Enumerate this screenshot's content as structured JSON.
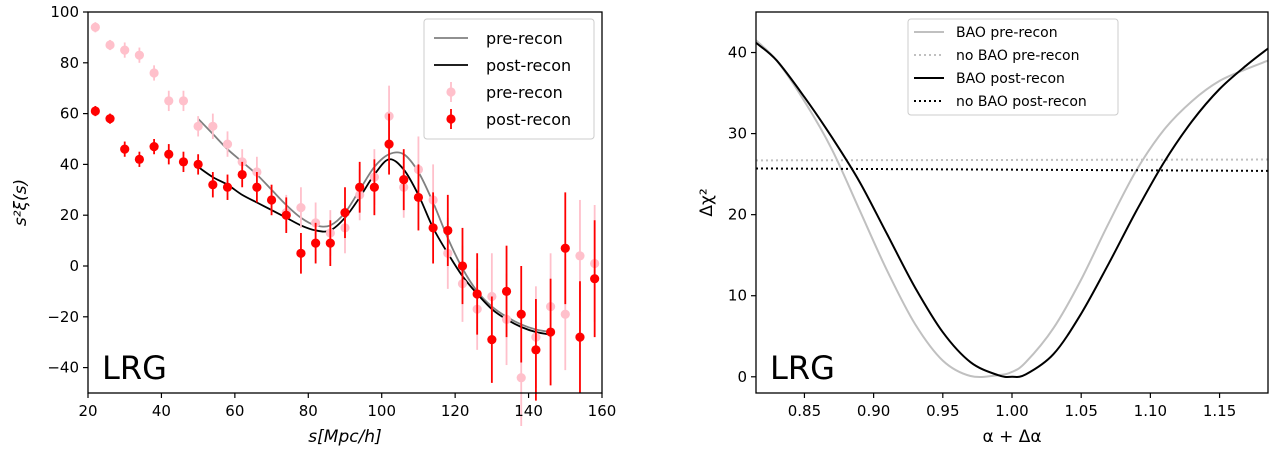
{
  "chart_data": [
    {
      "type": "scatter",
      "panel_tag": "LRG",
      "xlabel": "s[Mpc/h]",
      "ylabel": "s²ξ(s)",
      "xlim": [
        20,
        160
      ],
      "ylim": [
        -50,
        100
      ],
      "xticks": [
        20,
        40,
        60,
        80,
        100,
        120,
        140,
        160
      ],
      "yticks": [
        -40,
        -20,
        0,
        20,
        40,
        60,
        80,
        100
      ],
      "legend_position": "top-right",
      "legend": [
        "pre-recon",
        "post-recon",
        "pre-recon",
        "post-recon"
      ],
      "series": [
        {
          "name": "pre-recon",
          "kind": "line",
          "color": "#808080",
          "x": [
            50,
            54,
            58,
            62,
            66,
            70,
            74,
            78,
            82,
            86,
            90,
            94,
            98,
            102,
            106,
            110,
            114,
            118,
            122,
            126,
            130,
            134,
            138,
            142,
            146
          ],
          "y": [
            58,
            52,
            46,
            41,
            36,
            30,
            24,
            19,
            16,
            16,
            21,
            30,
            39,
            44,
            44,
            37,
            25,
            11,
            -1,
            -10,
            -16,
            -20,
            -23,
            -25,
            -26
          ]
        },
        {
          "name": "post-recon",
          "kind": "line",
          "color": "#000000",
          "x": [
            50,
            54,
            58,
            62,
            66,
            70,
            74,
            78,
            82,
            86,
            90,
            94,
            98,
            102,
            106,
            110,
            114,
            118,
            122,
            126,
            130,
            134,
            138,
            142,
            146
          ],
          "y": [
            39,
            35,
            32,
            28,
            25,
            22,
            19,
            16,
            14,
            14,
            19,
            27,
            36,
            42,
            38,
            28,
            15,
            5,
            -4,
            -11,
            -17,
            -21,
            -24,
            -26,
            -27
          ]
        },
        {
          "name": "pre-recon",
          "kind": "errorbar",
          "color": "#ffc0cb",
          "x": [
            22,
            26,
            30,
            34,
            38,
            42,
            46,
            50,
            54,
            58,
            62,
            66,
            70,
            74,
            78,
            82,
            86,
            90,
            94,
            98,
            102,
            106,
            110,
            114,
            118,
            122,
            126,
            130,
            134,
            138,
            142,
            146,
            150,
            154,
            158
          ],
          "y": [
            94,
            87,
            85,
            83,
            76,
            65,
            65,
            55,
            55,
            48,
            41,
            37,
            26,
            21,
            23,
            17,
            13,
            15,
            28,
            35,
            59,
            31,
            38,
            26,
            5,
            -7,
            -17,
            -12,
            -21,
            -44,
            -28,
            -16,
            -19,
            4,
            1
          ],
          "err": [
            2,
            2,
            3,
            3,
            3,
            4,
            4,
            4,
            5,
            5,
            5,
            6,
            6,
            7,
            8,
            8,
            9,
            10,
            10,
            11,
            12,
            12,
            13,
            14,
            14,
            15,
            16,
            17,
            18,
            19,
            20,
            21,
            22,
            22,
            23
          ]
        },
        {
          "name": "post-recon",
          "kind": "errorbar",
          "color": "#ff0000",
          "x": [
            22,
            26,
            30,
            34,
            38,
            42,
            46,
            50,
            54,
            58,
            62,
            66,
            70,
            74,
            78,
            82,
            86,
            90,
            94,
            98,
            102,
            106,
            110,
            114,
            118,
            122,
            126,
            130,
            134,
            138,
            142,
            146,
            150,
            154,
            158
          ],
          "y": [
            61,
            58,
            46,
            42,
            47,
            44,
            41,
            40,
            32,
            31,
            36,
            31,
            26,
            20,
            5,
            9,
            9,
            21,
            31,
            31,
            48,
            34,
            27,
            15,
            14,
            0,
            -11,
            -29,
            -10,
            -19,
            -33,
            -26,
            7,
            -28,
            -5
          ],
          "err": [
            2,
            2,
            3,
            3,
            3,
            4,
            4,
            4,
            5,
            5,
            5,
            6,
            6,
            7,
            8,
            8,
            9,
            10,
            10,
            11,
            12,
            12,
            13,
            14,
            14,
            15,
            16,
            17,
            18,
            19,
            20,
            21,
            22,
            22,
            23
          ]
        }
      ]
    },
    {
      "type": "line",
      "panel_tag": "LRG",
      "xlabel": "α + Δα",
      "ylabel": "Δχ²",
      "xlim": [
        0.815,
        1.185
      ],
      "ylim": [
        -2,
        45
      ],
      "xticks": [
        "0.85",
        "0.90",
        "0.95",
        "1.00",
        "1.05",
        "1.10",
        "1.15"
      ],
      "yticks": [
        0,
        10,
        20,
        30,
        40
      ],
      "legend_position": "top-center",
      "legend": [
        "BAO pre-recon",
        "no BAO pre-recon",
        "BAO post-recon",
        "no BAO post-recon"
      ],
      "series": [
        {
          "name": "BAO pre-recon",
          "style": "solid",
          "color": "#c0c0c0",
          "x": [
            0.815,
            0.83,
            0.85,
            0.87,
            0.89,
            0.91,
            0.93,
            0.95,
            0.97,
            0.99,
            1.0,
            1.01,
            1.03,
            1.05,
            1.07,
            1.09,
            1.11,
            1.13,
            1.15,
            1.17,
            1.185
          ],
          "y": [
            41.5,
            39,
            34,
            28,
            20.5,
            13,
            6.5,
            2,
            0.1,
            0.2,
            0.6,
            1.8,
            6,
            12,
            19,
            25.5,
            30.5,
            34,
            36.5,
            38,
            39
          ]
        },
        {
          "name": "no BAO pre-recon",
          "style": "dotted",
          "color": "#c0c0c0",
          "x": [
            0.815,
            1.185
          ],
          "y": [
            26.7,
            26.8
          ]
        },
        {
          "name": "BAO post-recon",
          "style": "solid",
          "color": "#000000",
          "x": [
            0.815,
            0.83,
            0.85,
            0.87,
            0.89,
            0.91,
            0.93,
            0.95,
            0.97,
            0.99,
            1.0,
            1.01,
            1.03,
            1.05,
            1.07,
            1.09,
            1.11,
            1.13,
            1.15,
            1.17,
            1.185
          ],
          "y": [
            41.2,
            39,
            34.5,
            29.5,
            24,
            17.5,
            11,
            5.5,
            1.8,
            0.2,
            0,
            0.3,
            2.8,
            7.8,
            14,
            20.5,
            26.5,
            31.5,
            35.5,
            38.5,
            40.5
          ]
        },
        {
          "name": "no BAO post-recon",
          "style": "dotted",
          "color": "#000000",
          "x": [
            0.815,
            1.185
          ],
          "y": [
            25.7,
            25.4
          ]
        }
      ]
    }
  ]
}
